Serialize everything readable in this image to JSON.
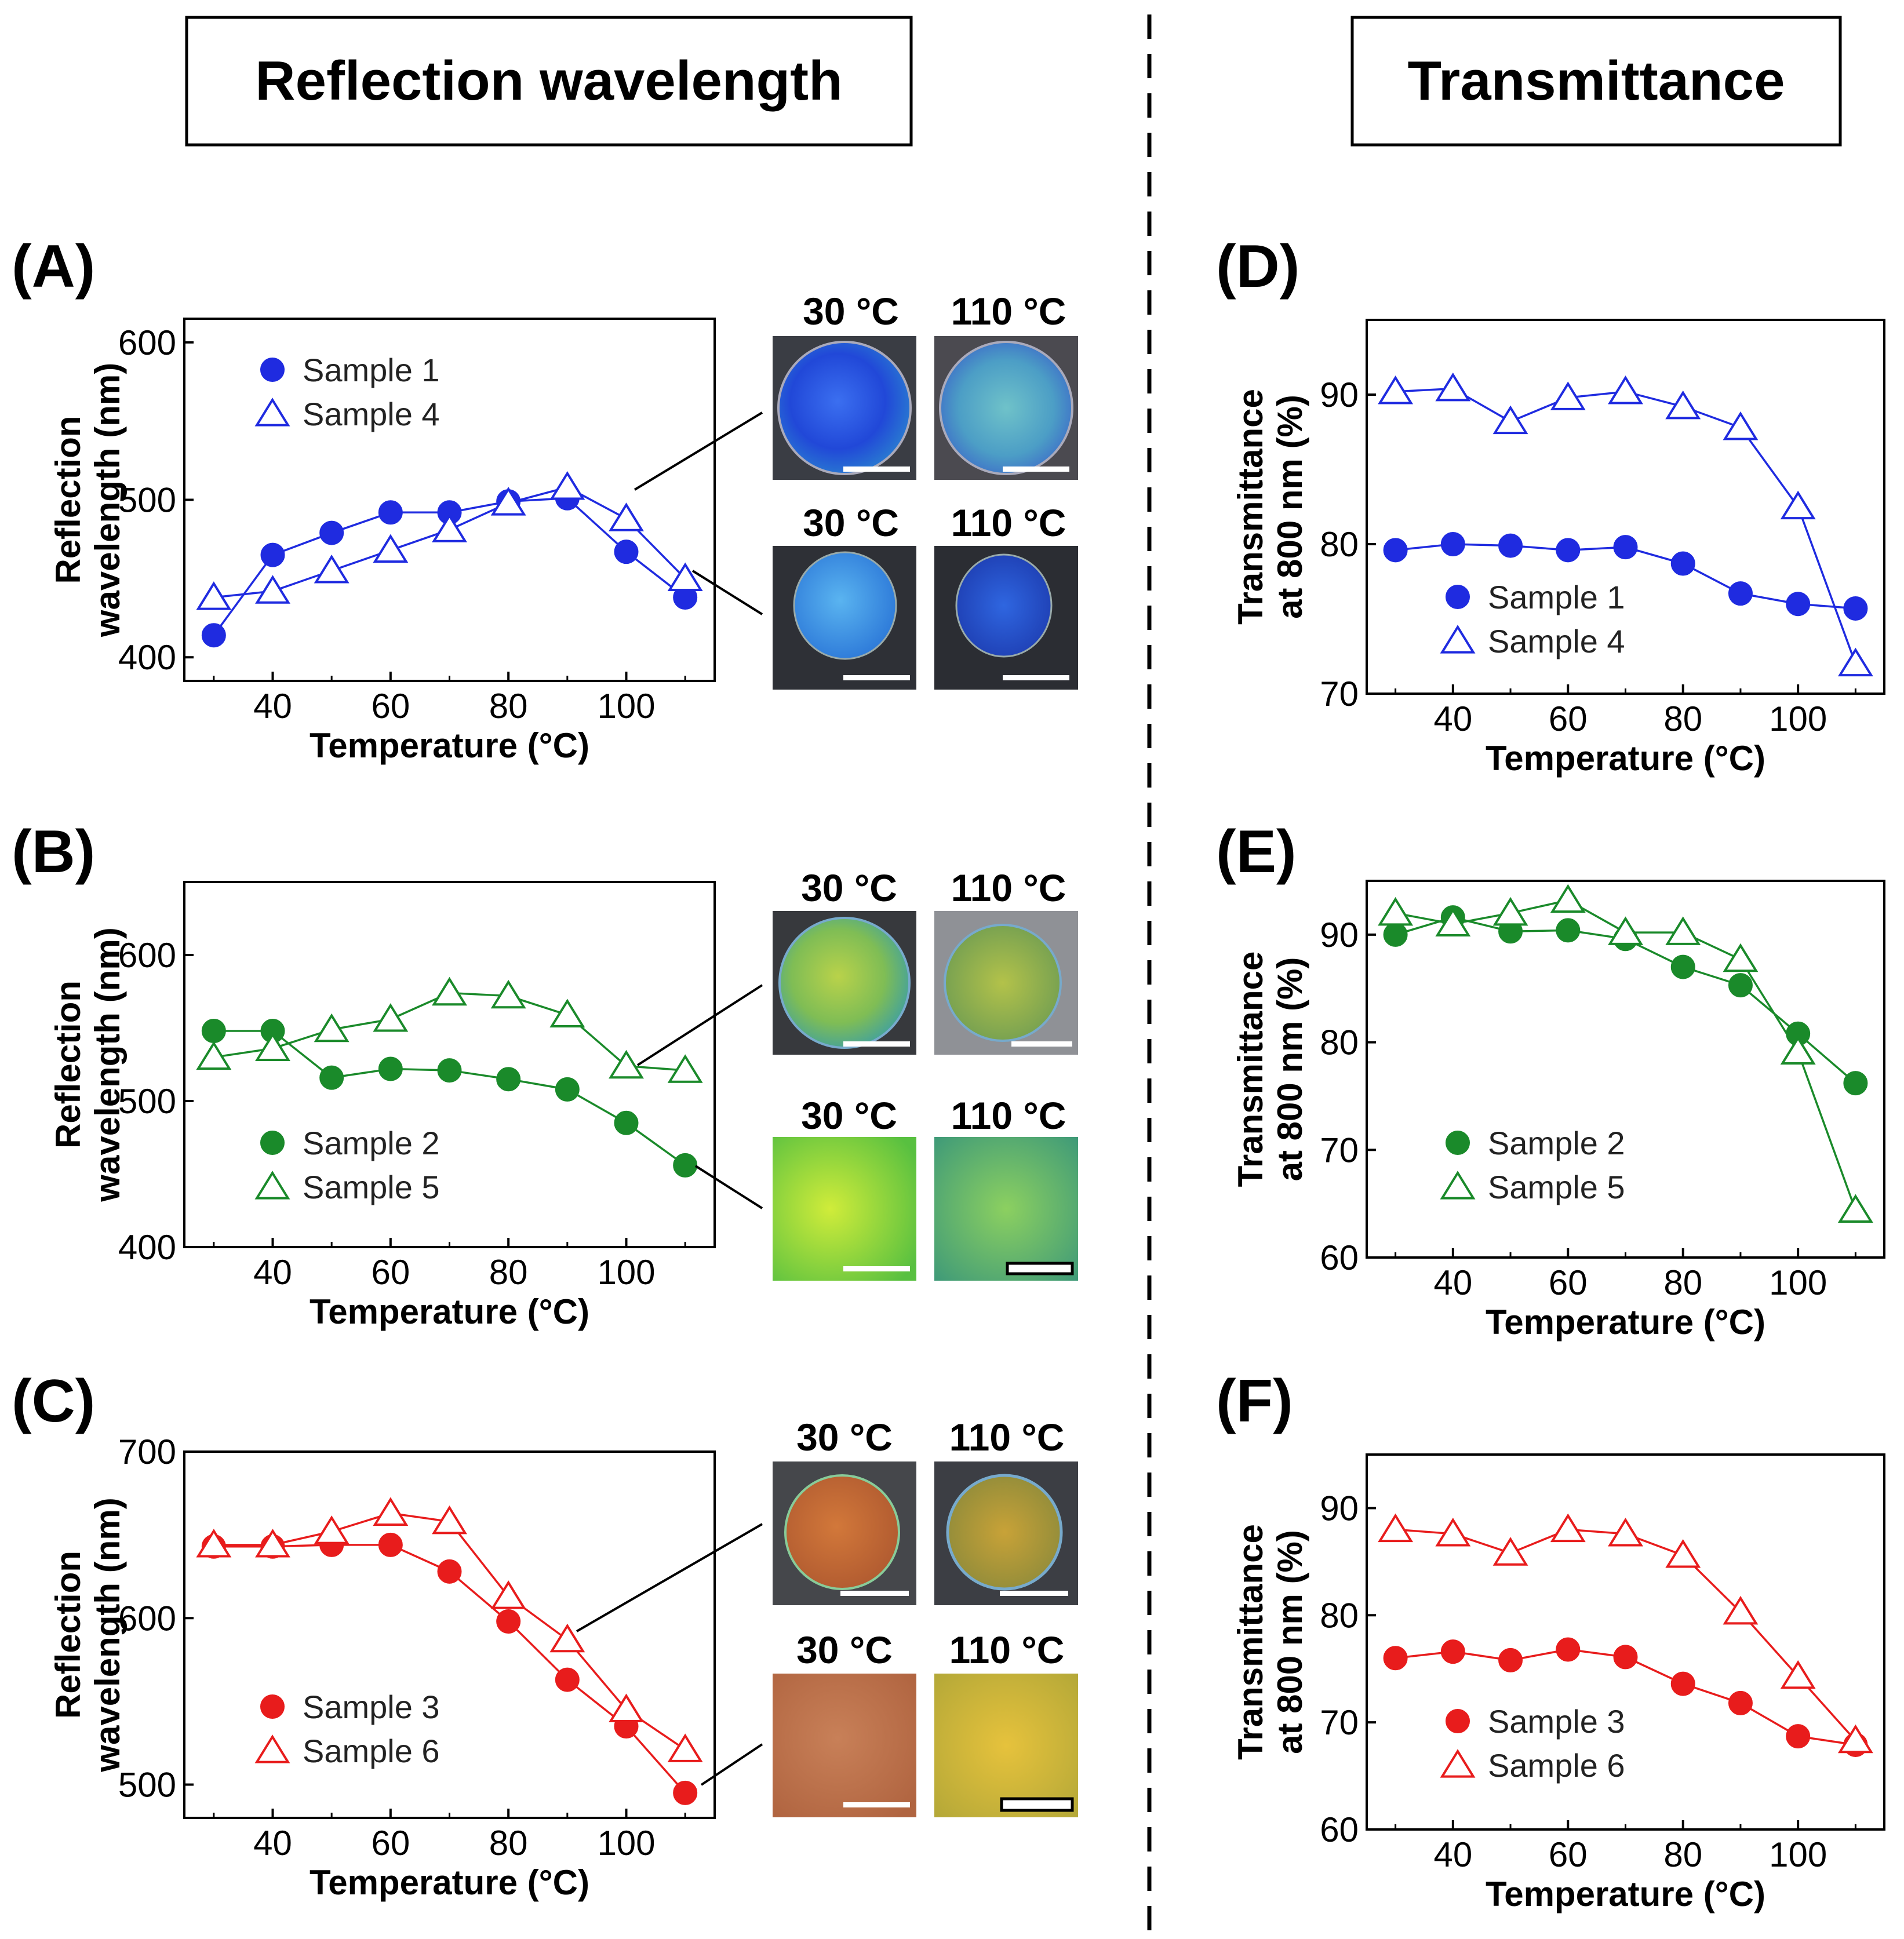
{
  "headers": {
    "reflection": "Reflection wavelength",
    "transmittance": "Transmittance"
  },
  "colors": {
    "blue": "#1f2be0",
    "green": "#1a8a2a",
    "red": "#e81c1c"
  },
  "photo_labels": {
    "t30": "30 °C",
    "t110": "110 °C"
  },
  "chart_data": [
    {
      "panel": "(A)",
      "type": "line",
      "color": "blue",
      "xlabel": "Temperature (°C)",
      "ylabel": [
        "Reflection",
        "wavelength (nm)"
      ],
      "xlim": [
        25,
        115
      ],
      "ylim": [
        385,
        615
      ],
      "xticks": [
        40,
        60,
        80,
        100
      ],
      "yticks": [
        400,
        500,
        600
      ],
      "x": [
        30,
        40,
        50,
        60,
        70,
        80,
        90,
        100,
        110
      ],
      "series": [
        {
          "name": "Sample 1",
          "marker": "circle",
          "values": [
            414,
            465,
            479,
            492,
            492,
            499,
            501,
            467,
            438
          ]
        },
        {
          "name": "Sample 4",
          "marker": "triangle",
          "values": [
            438,
            442,
            455,
            468,
            481,
            498,
            508,
            488,
            450
          ]
        }
      ],
      "legend_position": "top-left"
    },
    {
      "panel": "(B)",
      "type": "line",
      "color": "green",
      "xlabel": "Temperature (°C)",
      "ylabel": [
        "Reflection",
        "wavelength (nm)"
      ],
      "xlim": [
        25,
        115
      ],
      "ylim": [
        400,
        650
      ],
      "xticks": [
        40,
        60,
        80,
        100
      ],
      "yticks": [
        400,
        500,
        600
      ],
      "x": [
        30,
        40,
        50,
        60,
        70,
        80,
        90,
        100,
        110
      ],
      "series": [
        {
          "name": "Sample 2",
          "marker": "circle",
          "values": [
            548,
            548,
            516,
            522,
            521,
            515,
            508,
            485,
            456
          ]
        },
        {
          "name": "Sample 5",
          "marker": "triangle",
          "values": [
            530,
            536,
            549,
            556,
            574,
            572,
            559,
            524,
            521
          ]
        }
      ],
      "legend_position": "bottom-left"
    },
    {
      "panel": "(C)",
      "type": "line",
      "color": "red",
      "xlabel": "Temperature (°C)",
      "ylabel": [
        "Reflection",
        "wavelength (nm)"
      ],
      "xlim": [
        25,
        115
      ],
      "ylim": [
        480,
        700
      ],
      "xticks": [
        40,
        60,
        80,
        100
      ],
      "yticks": [
        500,
        600,
        700
      ],
      "x": [
        30,
        40,
        50,
        60,
        70,
        80,
        90,
        100,
        110
      ],
      "series": [
        {
          "name": "Sample 3",
          "marker": "circle",
          "values": [
            643,
            643,
            644,
            644,
            628,
            598,
            563,
            535,
            495
          ]
        },
        {
          "name": "Sample 6",
          "marker": "triangle",
          "values": [
            644,
            644,
            652,
            663,
            658,
            613,
            587,
            545,
            521
          ]
        }
      ],
      "legend_position": "bottom-left"
    },
    {
      "panel": "(D)",
      "type": "line",
      "color": "blue",
      "xlabel": "Temperature (°C)",
      "ylabel": [
        "Transmittance",
        "at 800 nm (%)"
      ],
      "xlim": [
        25,
        115
      ],
      "ylim": [
        70,
        95
      ],
      "xticks": [
        40,
        60,
        80,
        100
      ],
      "yticks": [
        70,
        80,
        90
      ],
      "x": [
        30,
        40,
        50,
        60,
        70,
        80,
        90,
        100,
        110
      ],
      "series": [
        {
          "name": "Sample 1",
          "marker": "circle",
          "values": [
            79.6,
            80.0,
            79.9,
            79.6,
            79.8,
            78.7,
            76.7,
            76.0,
            75.7
          ]
        },
        {
          "name": "Sample 4",
          "marker": "triangle",
          "values": [
            90.2,
            90.4,
            88.2,
            89.8,
            90.2,
            89.2,
            87.8,
            82.5,
            72.0
          ]
        }
      ],
      "legend_position": "bottom-left"
    },
    {
      "panel": "(E)",
      "type": "line",
      "color": "green",
      "xlabel": "Temperature (°C)",
      "ylabel": [
        "Transmittance",
        "at 800 nm (%)"
      ],
      "xlim": [
        25,
        115
      ],
      "ylim": [
        60,
        95
      ],
      "xticks": [
        40,
        60,
        80,
        100
      ],
      "yticks": [
        60,
        70,
        80,
        90
      ],
      "x": [
        30,
        40,
        50,
        60,
        70,
        80,
        90,
        100,
        110
      ],
      "series": [
        {
          "name": "Sample 2",
          "marker": "circle",
          "values": [
            90.0,
            91.6,
            90.3,
            90.4,
            89.6,
            87.0,
            85.3,
            80.8,
            76.2
          ]
        },
        {
          "name": "Sample 5",
          "marker": "triangle",
          "values": [
            92.0,
            91.0,
            92.0,
            93.2,
            90.2,
            90.2,
            87.7,
            79.1,
            64.4
          ]
        }
      ],
      "legend_position": "bottom-left"
    },
    {
      "panel": "(F)",
      "type": "line",
      "color": "red",
      "xlabel": "Temperature (°C)",
      "ylabel": [
        "Transmittance",
        "at 800 nm (%)"
      ],
      "xlim": [
        25,
        115
      ],
      "ylim": [
        60,
        95
      ],
      "xticks": [
        40,
        60,
        80,
        100
      ],
      "yticks": [
        60,
        70,
        80,
        90
      ],
      "x": [
        30,
        40,
        50,
        60,
        70,
        80,
        90,
        100,
        110
      ],
      "series": [
        {
          "name": "Sample 3",
          "marker": "circle",
          "values": [
            76.0,
            76.6,
            75.8,
            76.8,
            76.1,
            73.6,
            71.8,
            68.7,
            67.9
          ]
        },
        {
          "name": "Sample 6",
          "marker": "triangle",
          "values": [
            88.0,
            87.6,
            85.8,
            88.0,
            87.6,
            85.6,
            80.3,
            74.3,
            68.3
          ]
        }
      ],
      "legend_position": "bottom-left"
    }
  ]
}
